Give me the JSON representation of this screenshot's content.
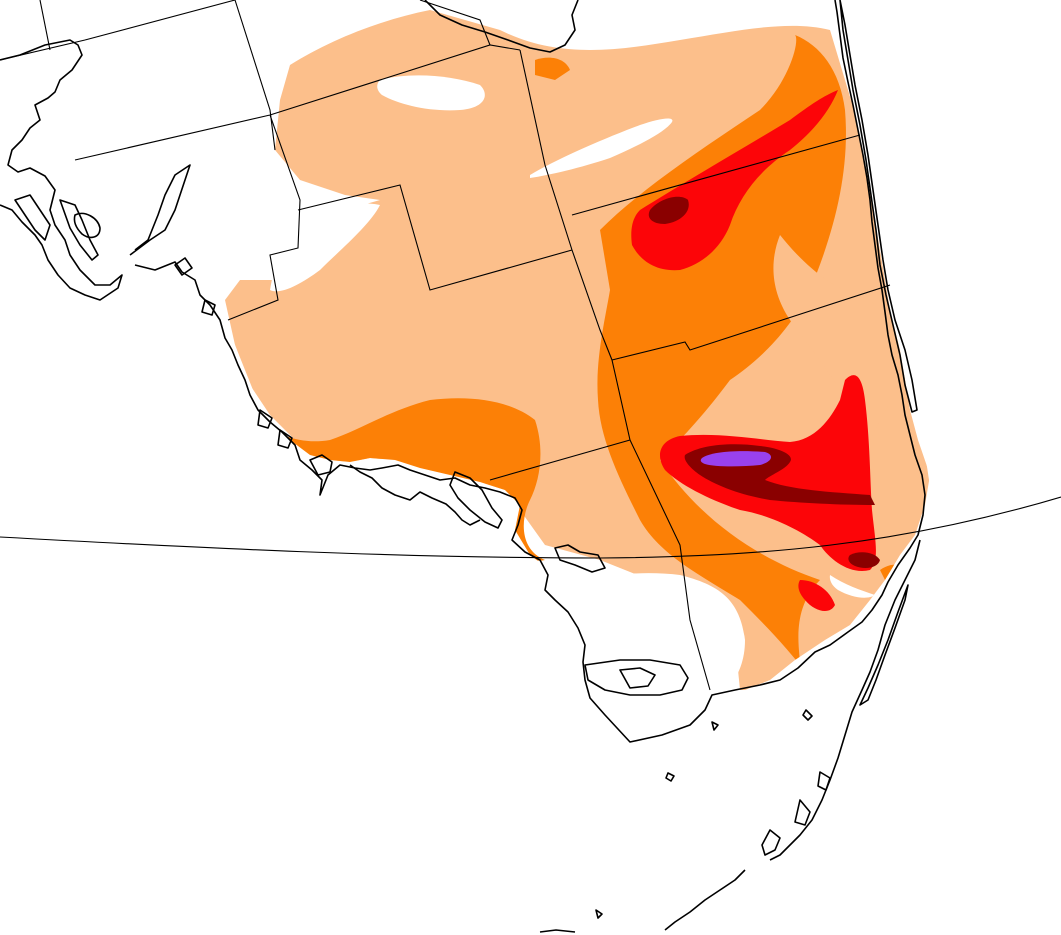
{
  "map": {
    "region": "South Florida",
    "background_color": "#ffffff",
    "land_outline_color": "#000000",
    "graticule_lines": 1,
    "shading": {
      "levels": [
        {
          "name": "level-1",
          "color": "#fcbf8b"
        },
        {
          "name": "level-2",
          "color": "#fc8006"
        },
        {
          "name": "level-3",
          "color": "#fc0508"
        },
        {
          "name": "level-4",
          "color": "#8a0000"
        },
        {
          "name": "level-5",
          "color": "#9941ee"
        }
      ]
    }
  }
}
